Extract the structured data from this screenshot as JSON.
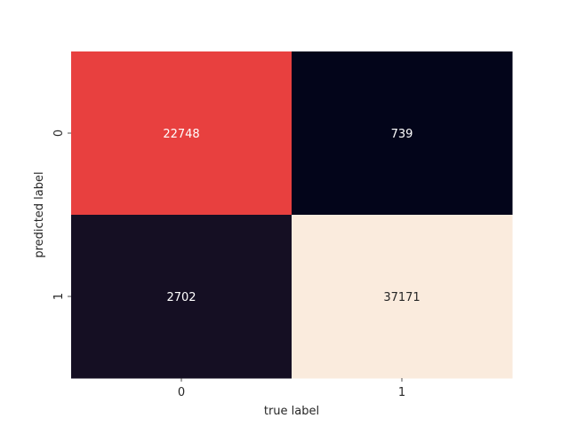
{
  "chart_data": {
    "type": "heatmap",
    "title": "",
    "xlabel": "true label",
    "ylabel": "predicted label",
    "x_categories": [
      "0",
      "1"
    ],
    "y_categories": [
      "0",
      "1"
    ],
    "values": [
      [
        22748,
        739
      ],
      [
        2702,
        37171
      ]
    ],
    "cell_colors": [
      [
        "#e8403f",
        "#03051a"
      ],
      [
        "#150f23",
        "#faebdd"
      ]
    ],
    "label_colors": [
      [
        "#ffffff",
        "#ffffff"
      ],
      [
        "#ffffff",
        "#262626"
      ]
    ],
    "colorbar": false,
    "colormap": "rocket"
  }
}
